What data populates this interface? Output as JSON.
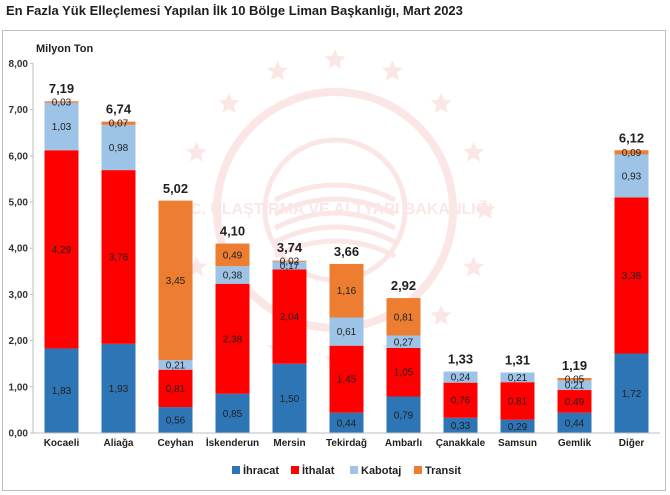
{
  "title": "En Fazla Yük Elleçlemesi Yapılan İlk 10 Bölge Liman Başkanlığı, Mart 2023",
  "watermark_text": "T.C. ULAŞTIRMA VE ALTYAPI BAKANLIĞI",
  "chart_data": {
    "type": "bar",
    "stacked": true,
    "title": "En Fazla Yük Elleçlemesi Yapılan İlk 10 Bölge Liman Başkanlığı, Mart 2023",
    "ylabel": "Milyon Ton",
    "ylim": [
      0,
      8
    ],
    "yticks": [
      "0,00",
      "1,00",
      "2,00",
      "3,00",
      "4,00",
      "5,00",
      "6,00",
      "7,00",
      "8,00"
    ],
    "categories": [
      "Kocaeli",
      "Aliağa",
      "Ceyhan",
      "İskenderun",
      "Mersin",
      "Tekirdağ",
      "Ambarlı",
      "Çanakkale",
      "Samsun",
      "Gemlik",
      "Diğer"
    ],
    "series": [
      {
        "name": "İhracat",
        "color": "#2e75b6",
        "values": [
          1.83,
          1.93,
          0.56,
          0.85,
          1.5,
          0.44,
          0.79,
          0.33,
          0.29,
          0.44,
          1.72
        ],
        "labels": [
          "1,83",
          "1,93",
          "0,56",
          "0,85",
          "1,50",
          "0,44",
          "0,79",
          "0,33",
          "0,29",
          "0,44",
          "1,72"
        ]
      },
      {
        "name": "İthalat",
        "color": "#ff0000",
        "values": [
          4.29,
          3.76,
          0.81,
          2.38,
          2.04,
          1.45,
          1.05,
          0.76,
          0.81,
          0.49,
          3.38
        ],
        "labels": [
          "4,29",
          "3,76",
          "0,81",
          "2,38",
          "2,04",
          "1,45",
          "1,05",
          "0,76",
          "0,81",
          "0,49",
          "3,38"
        ]
      },
      {
        "name": "Kabotaj",
        "color": "#9dc3e6",
        "values": [
          1.03,
          0.98,
          0.21,
          0.38,
          0.17,
          0.61,
          0.27,
          0.24,
          0.21,
          0.21,
          0.93
        ],
        "labels": [
          "1,03",
          "0,98",
          "0,21",
          "0,38",
          "0,17",
          "0,61",
          "0,27",
          "0,24",
          "0,21",
          "0,21",
          "0,93"
        ]
      },
      {
        "name": "Transit",
        "color": "#ed7d31",
        "values": [
          0.03,
          0.07,
          3.45,
          0.49,
          0.02,
          1.16,
          0.81,
          0.0,
          0.0,
          0.05,
          0.09
        ],
        "labels": [
          "0,03",
          "0,07",
          "3,45",
          "0,49",
          "0,02",
          "1,16",
          "0,81",
          "",
          "",
          "0,05",
          "0,09"
        ]
      }
    ],
    "totals": [
      7.19,
      6.74,
      5.02,
      4.1,
      3.74,
      3.66,
      2.92,
      1.33,
      1.31,
      1.19,
      6.12
    ],
    "total_labels": [
      "7,19",
      "6,74",
      "5,02",
      "4,10",
      "3,74",
      "3,66",
      "2,92",
      "1,33",
      "1,31",
      "1,19",
      "6,12"
    ],
    "legend_position": "bottom",
    "grid": false
  }
}
